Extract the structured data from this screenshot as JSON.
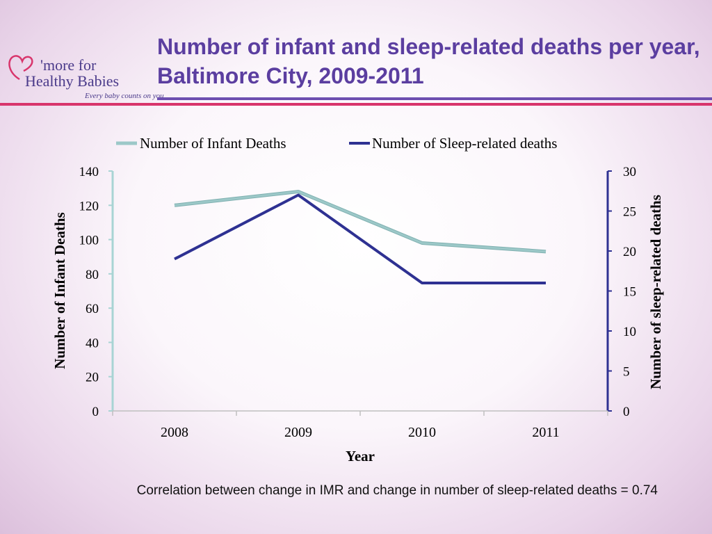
{
  "slide": {
    "title": "Number of infant and sleep-related deaths per year, Baltimore City, 2009-2011",
    "caption": "Correlation between change in IMR and change in number of sleep-related deaths  = 0.74"
  },
  "logo": {
    "line1": "'more for",
    "line2": "Healthy Babies",
    "tagline": "Every baby counts on you",
    "heart_color": "#d8356c",
    "text_color": "#4a3a8a"
  },
  "chart_data": {
    "type": "line",
    "categories": [
      "2008",
      "2009",
      "2010",
      "2011"
    ],
    "xlabel": "Year",
    "series": [
      {
        "name": "Number of Infant Deaths",
        "axis": "left",
        "color": "#9cc8c8",
        "values": [
          120,
          128,
          98,
          93
        ]
      },
      {
        "name": "Number of Sleep-related deaths",
        "axis": "right",
        "color": "#2e3192",
        "values": [
          19,
          27,
          16,
          16
        ]
      }
    ],
    "y_left": {
      "label": "Number of Infant Deaths",
      "range": [
        0,
        140
      ],
      "ticks": [
        0,
        20,
        40,
        60,
        80,
        100,
        120,
        140
      ]
    },
    "y_right": {
      "label": "Number of sleep-related deaths",
      "range": [
        0,
        30
      ],
      "ticks": [
        0,
        5,
        10,
        15,
        20,
        25,
        30
      ]
    },
    "grid": false,
    "legend": "top"
  }
}
